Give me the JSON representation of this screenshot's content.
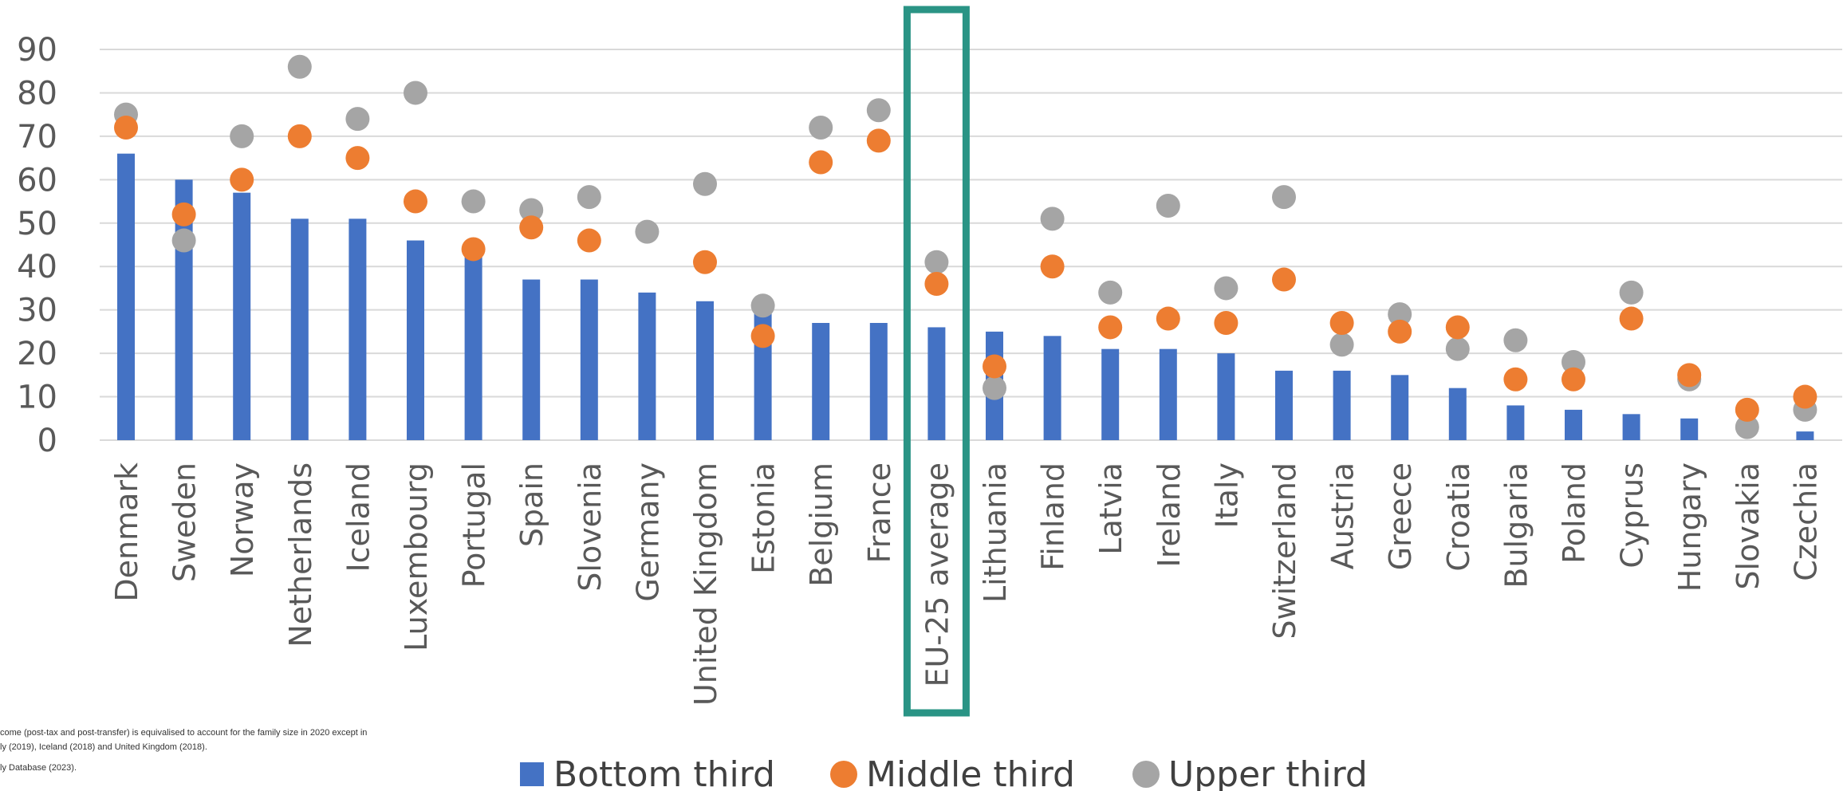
{
  "chart_data": {
    "type": "bar",
    "title": "",
    "xlabel": "",
    "ylabel": "",
    "ylim": [
      0,
      90
    ],
    "yticks": [
      0,
      10,
      20,
      30,
      40,
      50,
      60,
      70,
      80,
      90
    ],
    "grid": true,
    "legend_position": "bottom",
    "highlighted_category": "EU-25 average",
    "categories": [
      "Denmark",
      "Sweden",
      "Norway",
      "Netherlands",
      "Iceland",
      "Luxembourg",
      "Portugal",
      "Spain",
      "Slovenia",
      "Germany",
      "United Kingdom",
      "Estonia",
      "Belgium",
      "France",
      "EU-25 average",
      "Lithuania",
      "Finland",
      "Latvia",
      "Ireland",
      "Italy",
      "Switzerland",
      "Austria",
      "Greece",
      "Croatia",
      "Bulgaria",
      "Poland",
      "Cyprus",
      "Hungary",
      "Slovakia",
      "Czechia"
    ],
    "series": [
      {
        "name": "Bottom third",
        "mark": "bar",
        "color": "#4472c4",
        "values": [
          66,
          60,
          57,
          51,
          51,
          46,
          43,
          37,
          37,
          34,
          32,
          30,
          27,
          27,
          26,
          25,
          24,
          21,
          21,
          20,
          16,
          16,
          15,
          12,
          8,
          7,
          6,
          5,
          0,
          2
        ]
      },
      {
        "name": "Middle third",
        "mark": "dot",
        "color": "#ed7d31",
        "values": [
          72,
          52,
          60,
          70,
          65,
          55,
          44,
          49,
          46,
          null,
          41,
          24,
          64,
          69,
          36,
          17,
          40,
          26,
          28,
          27,
          37,
          27,
          25,
          26,
          14,
          14,
          28,
          15,
          7,
          10
        ]
      },
      {
        "name": "Upper third",
        "mark": "dot",
        "color": "#a5a5a5",
        "values": [
          75,
          46,
          70,
          86,
          74,
          80,
          55,
          53,
          56,
          48,
          59,
          31,
          72,
          76,
          41,
          12,
          51,
          34,
          54,
          35,
          56,
          22,
          29,
          21,
          23,
          18,
          34,
          14,
          3,
          7
        ]
      }
    ]
  },
  "note": {
    "line1": "come (post-tax and post-transfer) is equivalised to account for the family size in 2020 except in",
    "line2": "ly (2019), Iceland (2018) and United Kingdom (2018).",
    "line3": "ly Database (2023)."
  },
  "colors": {
    "highlight_box": "#2a9485",
    "grid": "#d9d9d9",
    "axis_text": "#595959"
  }
}
